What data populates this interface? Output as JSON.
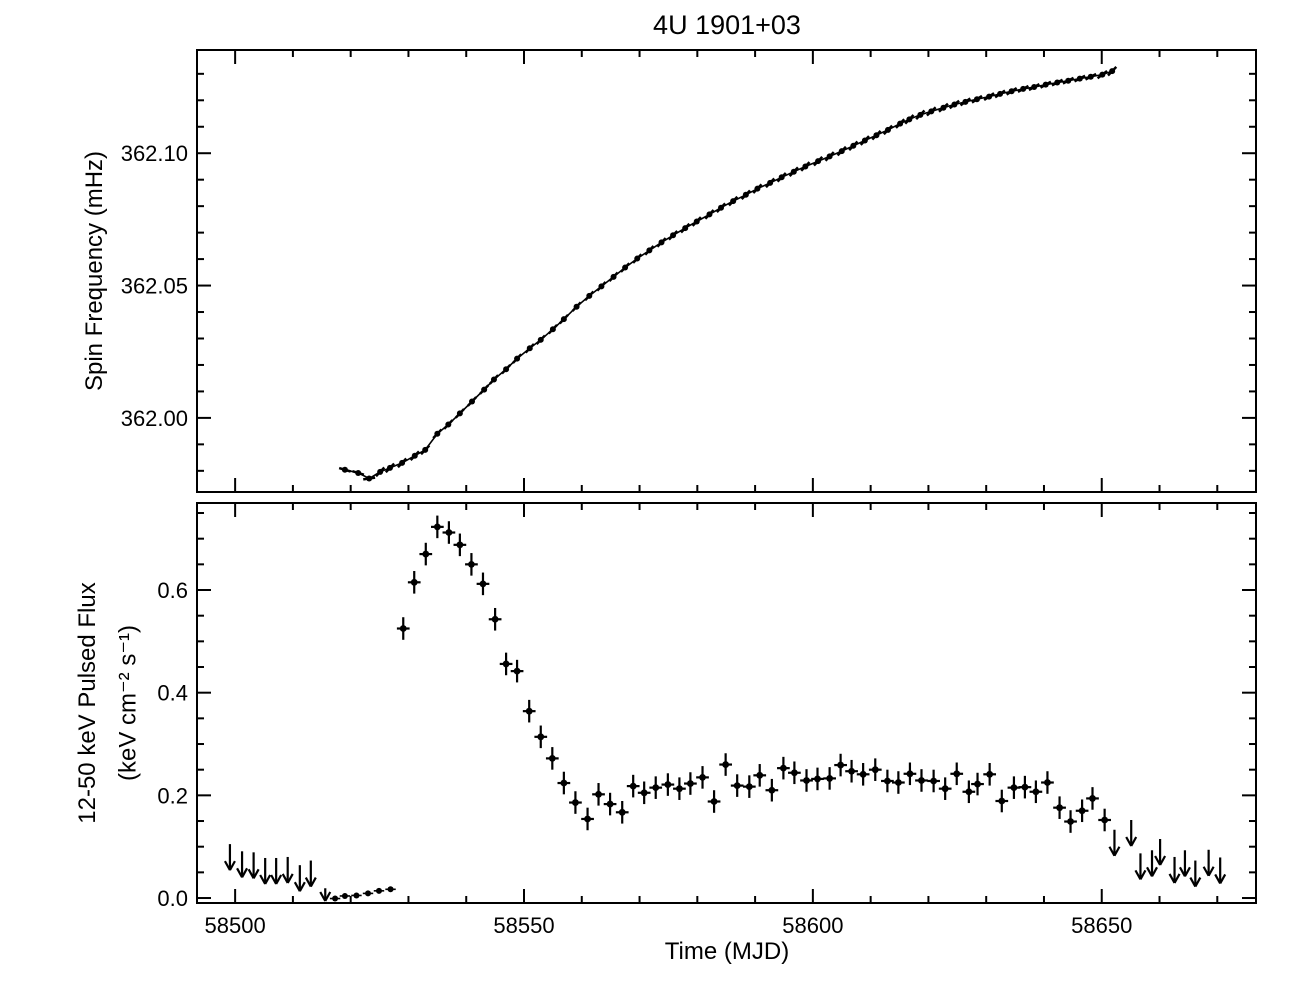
{
  "title": "4U 1901+03",
  "colors": {
    "foreground": "#000000",
    "background": "#ffffff"
  },
  "chart_data": {
    "type": "scatter",
    "title": "4U 1901+03",
    "xlabel": "Time (MJD)",
    "xlim": [
      58493.4,
      58676.7
    ],
    "x_major_ticks": [
      58500,
      58550,
      58600,
      58650
    ],
    "x_tick_labels": [
      "58500",
      "58550",
      "58600",
      "58650"
    ],
    "x_minor_step": 10,
    "panels": [
      {
        "name": "spin-frequency",
        "ylabel": "Spin Frequency (mHz)",
        "ylim": [
          361.972,
          362.139
        ],
        "y_major_ticks": [
          362.0,
          362.05,
          362.1
        ],
        "y_tick_labels": [
          "362.00",
          "362.05",
          "362.10"
        ],
        "y_minor_step": 0.01,
        "series": [
          {
            "name": "spin-frequency-model",
            "type": "model-curve",
            "points": [
              [
                58519.0,
                361.9804
              ],
              [
                58521.3,
                361.9792
              ],
              [
                58523.2,
                361.9771
              ],
              [
                58525.1,
                361.9796
              ],
              [
                58526.8,
                361.9811
              ],
              [
                58528.9,
                361.983
              ],
              [
                58531.1,
                361.9857
              ],
              [
                58532.9,
                361.9879
              ],
              [
                58535.0,
                361.994
              ],
              [
                58536.9,
                361.9975
              ],
              [
                58538.9,
                362.0017
              ],
              [
                58541.0,
                362.0062
              ],
              [
                58543.1,
                362.0107
              ],
              [
                58544.8,
                362.0145
              ],
              [
                58546.9,
                362.0184
              ],
              [
                58548.8,
                362.0224
              ],
              [
                58551.0,
                362.0263
              ],
              [
                58552.9,
                362.0295
              ],
              [
                58555.0,
                362.0335
              ],
              [
                58556.9,
                362.0373
              ],
              [
                58559.1,
                362.042
              ],
              [
                58561.3,
                362.0461
              ],
              [
                58563.4,
                362.0497
              ],
              [
                58565.5,
                362.0533
              ],
              [
                58567.5,
                362.0568
              ],
              [
                58569.6,
                362.0602
              ],
              [
                58571.7,
                362.0633
              ],
              [
                58573.8,
                362.0663
              ],
              [
                58575.8,
                362.069
              ],
              [
                58577.9,
                362.0717
              ],
              [
                58579.9,
                362.0742
              ],
              [
                58582.1,
                362.0769
              ],
              [
                58584.1,
                362.0794
              ],
              [
                58586.2,
                362.0819
              ],
              [
                58588.4,
                362.0843
              ],
              [
                58590.4,
                362.0866
              ],
              [
                58592.6,
                362.0888
              ],
              [
                58594.6,
                362.0909
              ],
              [
                58596.7,
                362.093
              ],
              [
                58598.7,
                362.095
              ],
              [
                58600.9,
                362.097
              ],
              [
                58602.9,
                362.0988
              ],
              [
                58605.0,
                362.1008
              ],
              [
                58607.0,
                362.1028
              ],
              [
                58609.0,
                362.1048
              ],
              [
                58611.0,
                362.1068
              ],
              [
                58613.0,
                362.1088
              ],
              [
                58615.1,
                362.1112
              ],
              [
                58616.7,
                362.1128
              ],
              [
                58618.6,
                362.1145
              ],
              [
                58620.5,
                362.1158
              ],
              [
                58622.6,
                362.1172
              ],
              [
                58624.5,
                362.1184
              ],
              [
                58626.4,
                362.1194
              ],
              [
                58628.4,
                362.1204
              ],
              [
                58630.5,
                362.1214
              ],
              [
                58632.4,
                362.1224
              ],
              [
                58634.4,
                362.1234
              ],
              [
                58636.4,
                362.1243
              ],
              [
                58638.3,
                362.125
              ],
              [
                58640.3,
                362.1259
              ],
              [
                58642.3,
                362.1267
              ],
              [
                58644.2,
                362.1274
              ],
              [
                58646.2,
                362.1282
              ],
              [
                58648.1,
                362.1289
              ],
              [
                58650.1,
                362.1297
              ],
              [
                58651.8,
                362.131
              ]
            ]
          }
        ]
      },
      {
        "name": "pulsed-flux",
        "ylabel_lines": [
          "12-50 keV Pulsed Flux",
          "(keV cm⁻² s⁻¹)"
        ],
        "ylim": [
          -0.0097,
          0.7695
        ],
        "y_major_ticks": [
          0.0,
          0.2,
          0.4,
          0.6
        ],
        "y_tick_labels": [
          "0.0",
          "0.2",
          "0.4",
          "0.6"
        ],
        "y_minor_step": 0.05,
        "series": [
          {
            "name": "pulsed-flux-detections",
            "type": "errorbar",
            "xerr": 1.1,
            "yerr": 0.022,
            "points": [
              [
                58529.1,
                0.525
              ],
              [
                58531.0,
                0.615
              ],
              [
                58533.0,
                0.67
              ],
              [
                58535.0,
                0.723
              ],
              [
                58537.0,
                0.712
              ],
              [
                58538.9,
                0.688
              ],
              [
                58540.9,
                0.65
              ],
              [
                58542.9,
                0.612
              ],
              [
                58545.0,
                0.543
              ],
              [
                58546.9,
                0.456
              ],
              [
                58548.8,
                0.442
              ],
              [
                58550.9,
                0.364
              ],
              [
                58552.9,
                0.314
              ],
              [
                58554.9,
                0.272
              ],
              [
                58556.9,
                0.224
              ],
              [
                58558.9,
                0.186
              ],
              [
                58561.0,
                0.154
              ],
              [
                58562.9,
                0.202
              ],
              [
                58564.9,
                0.183
              ],
              [
                58567.0,
                0.167
              ],
              [
                58568.9,
                0.218
              ],
              [
                58570.8,
                0.205
              ],
              [
                58572.8,
                0.215
              ],
              [
                58574.9,
                0.221
              ],
              [
                58576.9,
                0.213
              ],
              [
                58578.8,
                0.223
              ],
              [
                58580.9,
                0.235
              ],
              [
                58582.9,
                0.188
              ],
              [
                58584.9,
                0.26
              ],
              [
                58586.9,
                0.219
              ],
              [
                58589.0,
                0.217
              ],
              [
                58590.8,
                0.239
              ],
              [
                58592.9,
                0.21
              ],
              [
                58594.9,
                0.253
              ],
              [
                58596.8,
                0.244
              ],
              [
                58598.9,
                0.229
              ],
              [
                58600.8,
                0.232
              ],
              [
                58602.9,
                0.233
              ],
              [
                58604.8,
                0.259
              ],
              [
                58606.7,
                0.247
              ],
              [
                58608.7,
                0.241
              ],
              [
                58610.8,
                0.25
              ],
              [
                58612.9,
                0.228
              ],
              [
                58614.8,
                0.225
              ],
              [
                58616.8,
                0.242
              ],
              [
                58618.8,
                0.229
              ],
              [
                58620.9,
                0.228
              ],
              [
                58622.9,
                0.213
              ],
              [
                58624.9,
                0.242
              ],
              [
                58627.0,
                0.207
              ],
              [
                58628.5,
                0.222
              ],
              [
                58630.6,
                0.241
              ],
              [
                58632.7,
                0.189
              ],
              [
                58634.8,
                0.215
              ],
              [
                58636.7,
                0.216
              ],
              [
                58638.6,
                0.207
              ],
              [
                58640.6,
                0.225
              ],
              [
                58642.7,
                0.176
              ],
              [
                58644.6,
                0.149
              ],
              [
                58646.6,
                0.17
              ],
              [
                58648.4,
                0.194
              ],
              [
                58650.5,
                0.152
              ]
            ]
          },
          {
            "name": "pulsed-flux-faint-points",
            "type": "errorbar",
            "xerr": 0.9,
            "yerr": 0.005,
            "small": true,
            "points": [
              [
                58517.3,
                -0.001
              ],
              [
                58519.0,
                0.004
              ],
              [
                58521.0,
                0.005
              ],
              [
                58523.0,
                0.009
              ],
              [
                58524.9,
                0.014
              ],
              [
                58526.9,
                0.017
              ]
            ]
          },
          {
            "name": "pulsed-flux-upper-limits",
            "type": "upper-limits",
            "points": [
              [
                58499.1,
                0.105
              ],
              [
                58501.2,
                0.091
              ],
              [
                58503.2,
                0.089
              ],
              [
                58505.2,
                0.078
              ],
              [
                58507.1,
                0.078
              ],
              [
                58509.1,
                0.08
              ],
              [
                58511.2,
                0.064
              ],
              [
                58513.1,
                0.073
              ],
              [
                58515.6,
                0.019
              ],
              [
                58652.2,
                0.133
              ],
              [
                58655.1,
                0.152
              ],
              [
                58656.7,
                0.087
              ],
              [
                58658.7,
                0.093
              ],
              [
                58660.1,
                0.115
              ],
              [
                58662.6,
                0.08
              ],
              [
                58664.4,
                0.093
              ],
              [
                58666.2,
                0.073
              ],
              [
                58668.5,
                0.094
              ],
              [
                58670.5,
                0.079
              ]
            ]
          }
        ]
      }
    ]
  }
}
